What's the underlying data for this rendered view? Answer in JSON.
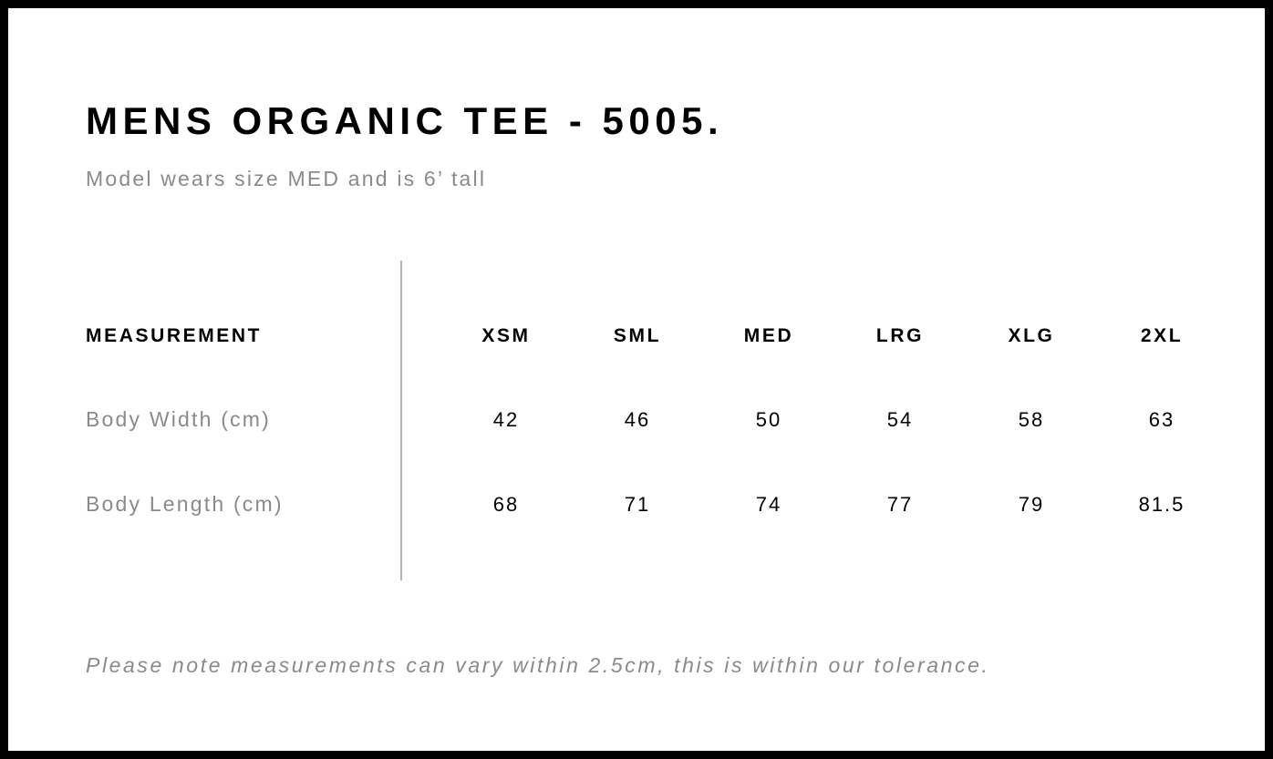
{
  "title": "MENS ORGANIC TEE - 5005.",
  "subtitle": "Model wears size MED and is 6’ tall",
  "table": {
    "header_label": "MEASUREMENT",
    "sizes": [
      "XSM",
      "SML",
      "MED",
      "LRG",
      "XLG",
      "2XL"
    ],
    "rows": [
      {
        "label": "Body Width (cm)",
        "values": [
          "42",
          "46",
          "50",
          "54",
          "58",
          "63"
        ]
      },
      {
        "label": "Body Length (cm)",
        "values": [
          "68",
          "71",
          "74",
          "77",
          "79",
          "81.5"
        ]
      }
    ]
  },
  "note": "Please note measurements can vary within 2.5cm, this is within our tolerance."
}
